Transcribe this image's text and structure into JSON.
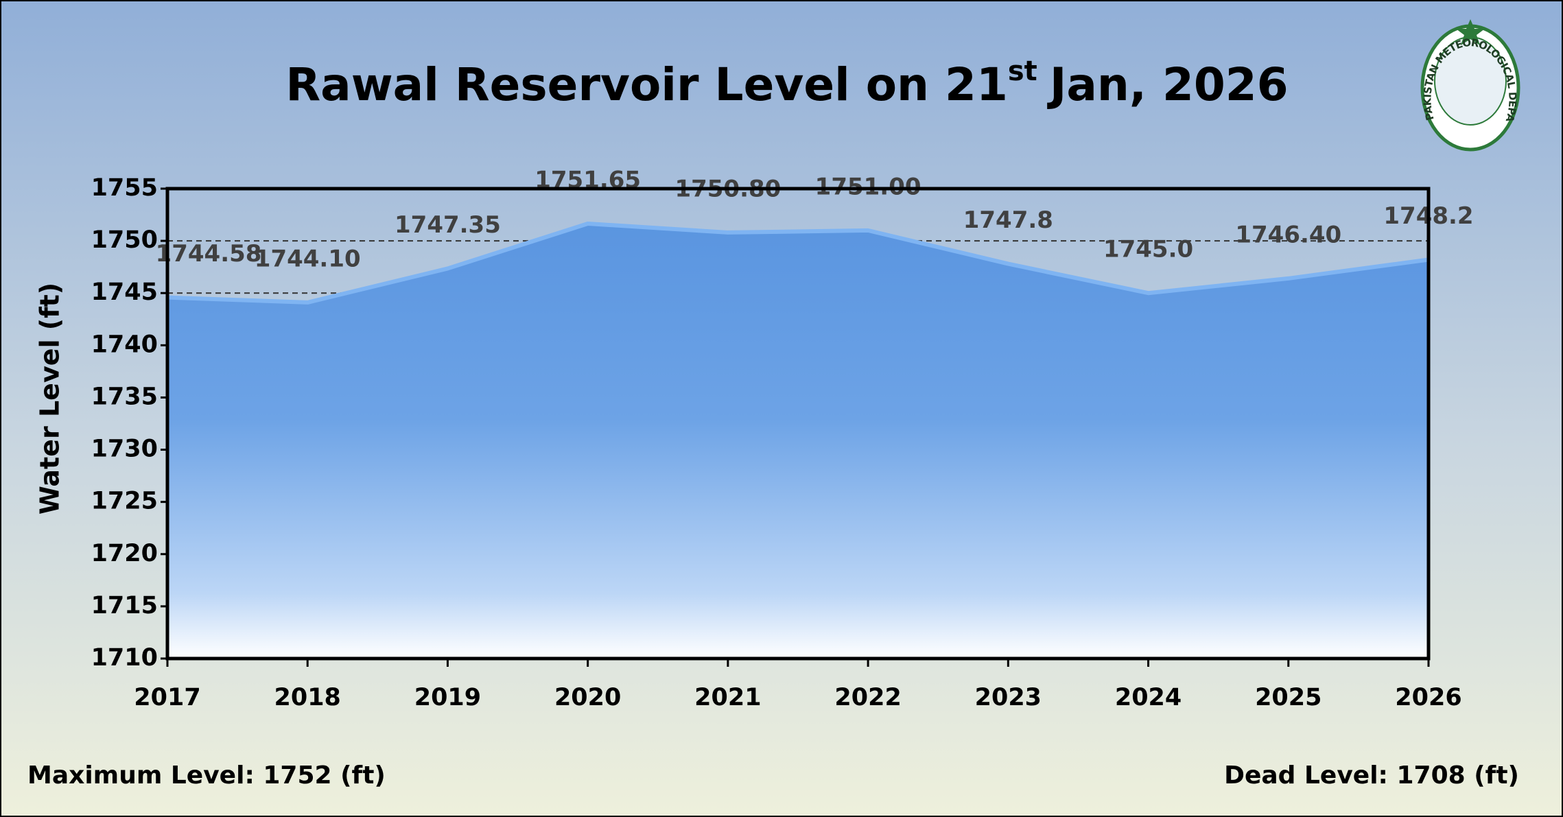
{
  "chart_data": {
    "type": "area",
    "title": [
      "Rawal Reservoir Level on 21",
      "st",
      "Jan, 2026"
    ],
    "y_label": "Water Level (ft)",
    "categories": [
      "2017",
      "2018",
      "2019",
      "2020",
      "2021",
      "2022",
      "2023",
      "2024",
      "2025",
      "2026"
    ],
    "values": [
      1744.58,
      1744.1,
      1747.35,
      1751.65,
      1750.8,
      1751.0,
      1747.8,
      1745.0,
      1746.4,
      1748.2
    ],
    "value_labels": [
      "1744.58",
      "1744.10",
      "1747.35",
      "1751.65",
      "1750.80",
      "1751.00",
      "1747.8",
      "1745.0",
      "1746.40",
      "1748.2"
    ],
    "color": "#5b97e0",
    "ylim": [
      1710,
      1755
    ],
    "yticks": [
      1710,
      1715,
      1720,
      1725,
      1730,
      1735,
      1740,
      1745,
      1750,
      1755
    ],
    "grid": true,
    "footer_left": "Maximum Level: 1752 (ft)",
    "footer_right": "Dead Level: 1708 (ft)",
    "logo_text": "PAKISTAN METEOROLOGICAL DEPARTMENT"
  }
}
